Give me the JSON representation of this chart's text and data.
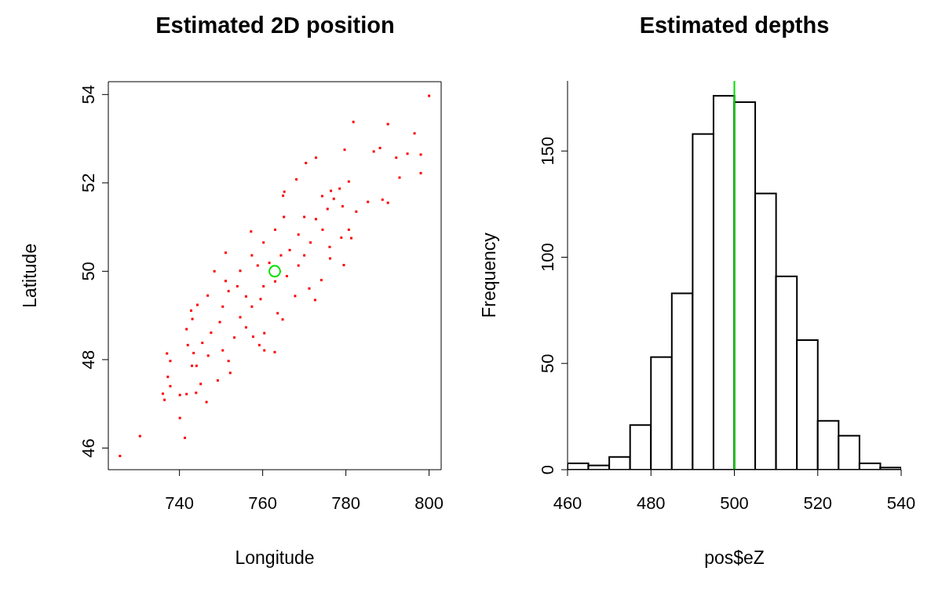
{
  "chart_data": [
    {
      "type": "scatter",
      "title": "Estimated 2D position",
      "xlabel": "Longitude",
      "ylabel": "Latitude",
      "xlim": [
        722.9,
        802.9
      ],
      "ylim": [
        45.51,
        54.29
      ],
      "xticks": [
        740,
        760,
        780,
        800
      ],
      "yticks": [
        46,
        48,
        50,
        52,
        54
      ],
      "series": [
        {
          "color": "#ff0000",
          "marker": "square",
          "x": [
            800.0,
            781.8,
            790.1,
            796.5,
            798.0,
            798.0,
            786.7,
            788.2,
            794.8,
            792.1,
            792.9,
            790.1,
            788.8,
            785.3,
            779.7,
            772.8,
            770.4,
            768.1,
            780.7,
            782.5,
            780.7,
            781.3,
            779.5,
            778.9,
            776.1,
            776.2,
            774.1,
            772.6,
            771.2,
            767.8,
            765.2,
            764.9,
            757.2,
            751.1,
            748.4,
            746.8,
            744.3,
            742.8,
            743.1,
            741.7,
            737.0,
            737.8,
            737.2,
            737.8,
            736.0,
            736.4,
            740.1,
            741.7,
            744.0,
            746.5,
            740.1,
            741.3,
            730.5,
            725.7,
            749.2,
            752.2,
            762.9,
            760.4,
            759.2,
            757.7,
            760.4,
            764.8,
            763.6,
            754.6,
            757.4,
            759.5,
            756.0,
            753.9,
            751.1,
            760.2,
            763.0,
            765.8,
            768.6,
            770.0,
            771.5,
            768.6,
            766.5,
            764.4,
            761.6,
            758.8,
            774.4,
            772.8,
            770.0,
            775.6,
            777.1,
            774.3,
            778.5,
            776.4,
            779.2,
            765.1,
            763.0,
            760.2,
            757.4,
            754.6,
            751.8,
            750.4,
            749.7,
            747.6,
            745.5,
            743.4,
            744.1,
            746.9,
            750.4,
            753.2,
            751.8,
            756.0,
            742.0,
            743.0,
            745.1
          ],
          "values": [
            53.97,
            53.38,
            53.33,
            53.12,
            52.64,
            52.22,
            52.71,
            52.79,
            52.66,
            52.57,
            52.12,
            51.55,
            51.62,
            51.57,
            52.75,
            52.57,
            52.45,
            52.08,
            52.03,
            51.35,
            50.94,
            50.75,
            50.14,
            50.76,
            50.55,
            50.29,
            49.8,
            49.35,
            49.61,
            49.44,
            51.8,
            51.71,
            50.9,
            50.42,
            50.0,
            49.45,
            49.24,
            49.11,
            48.92,
            48.69,
            48.14,
            47.97,
            47.61,
            47.4,
            47.23,
            47.09,
            47.2,
            47.22,
            47.25,
            47.04,
            46.68,
            46.23,
            46.27,
            45.82,
            47.53,
            47.7,
            48.17,
            48.21,
            48.33,
            48.52,
            48.6,
            48.91,
            49.05,
            48.96,
            49.2,
            49.37,
            49.43,
            49.66,
            49.78,
            49.66,
            49.77,
            49.89,
            50.13,
            50.36,
            50.65,
            50.83,
            50.48,
            50.36,
            50.19,
            50.13,
            50.94,
            51.18,
            51.23,
            51.41,
            51.64,
            51.7,
            51.87,
            51.82,
            51.47,
            51.23,
            50.94,
            50.65,
            50.36,
            50.01,
            49.55,
            49.2,
            48.85,
            48.61,
            48.38,
            48.15,
            47.86,
            48.09,
            48.21,
            48.5,
            47.97,
            48.73,
            48.33,
            47.86,
            47.45
          ]
        },
        {
          "color": "#00e000",
          "marker": "circle",
          "x": [
            762.9
          ],
          "values": [
            50.0
          ]
        }
      ]
    },
    {
      "type": "histogram",
      "title": "Estimated depths",
      "xlabel": "pos$eZ",
      "ylabel": "Frequency",
      "color": "#ffffff",
      "xlim": [
        460,
        540
      ],
      "ylim": [
        0,
        183
      ],
      "xticks": [
        460,
        480,
        500,
        520,
        540
      ],
      "yticks": [
        0,
        50,
        100,
        150
      ],
      "bins": [
        460,
        465,
        470,
        475,
        480,
        485,
        490,
        495,
        500,
        505,
        510,
        515,
        520,
        525,
        530,
        535,
        540
      ],
      "values": [
        3,
        2,
        6,
        21,
        53,
        83,
        158,
        176,
        173,
        130,
        91,
        61,
        23,
        16,
        3,
        1
      ],
      "ref_lines": [
        {
          "axis": "x",
          "value": 500,
          "color": "#00e000"
        }
      ]
    }
  ]
}
